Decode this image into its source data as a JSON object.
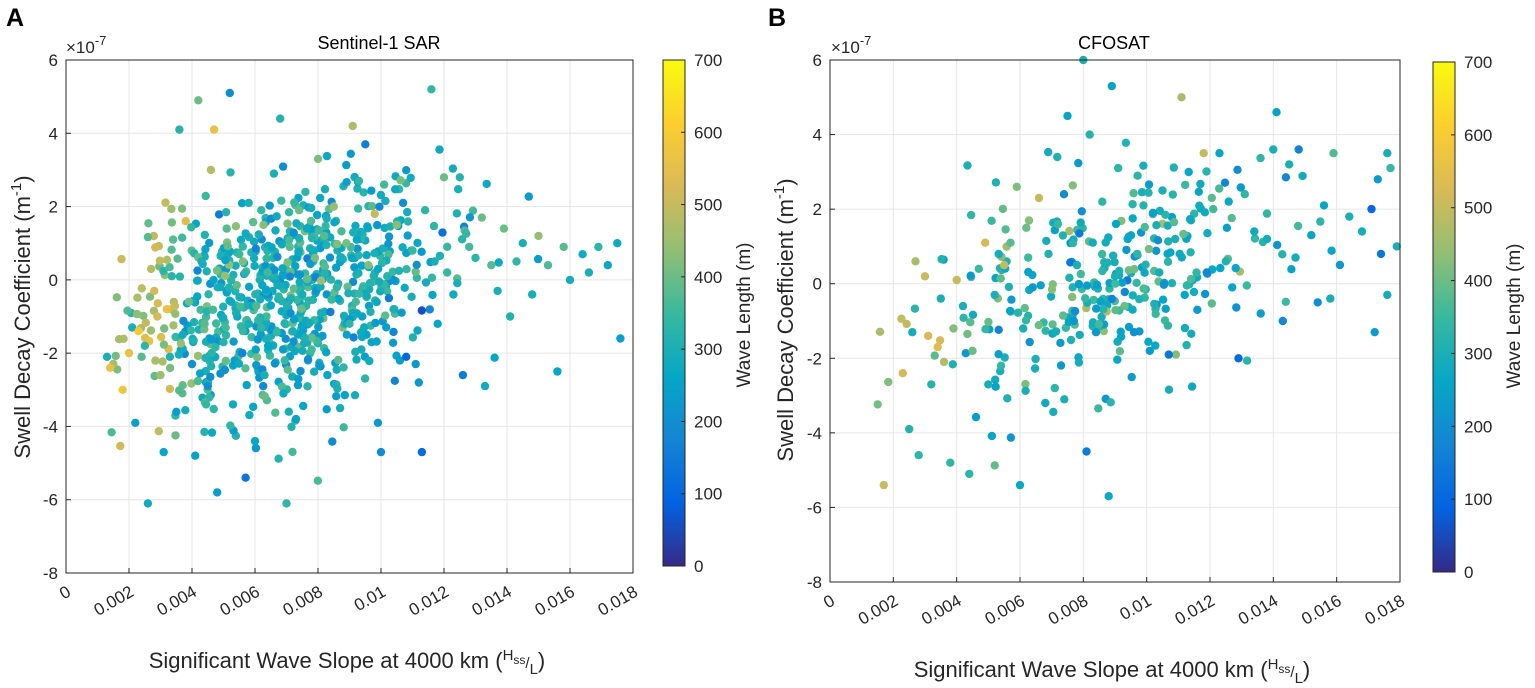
{
  "figure": {
    "panel_letters": [
      "A",
      "B"
    ]
  },
  "colormap": {
    "name": "parula",
    "stops": [
      "#352a87",
      "#0363e1",
      "#1485d4",
      "#06a7c6",
      "#38b99e",
      "#92bf73",
      "#d9ba56",
      "#fcce2e",
      "#f9fb0e"
    ]
  },
  "chart_data": [
    {
      "type": "scatter",
      "panel": "A",
      "title": "Sentinel-1 SAR",
      "xlabel_main": "Significant Wave Slope at 4000 km (",
      "xlabel_num": "H",
      "xlabel_num_sub": "ss",
      "xlabel_den": "L",
      "xlabel_close": ")",
      "ylabel_main": "Swell Decay Coefficient (m",
      "ylabel_sup": "-1",
      "ylabel_close": ")",
      "y_scale_base": "×10",
      "y_scale_exp": "-7",
      "xlim": [
        0,
        0.018
      ],
      "ylim": [
        -8,
        6
      ],
      "xticks": [
        "0",
        "0.002",
        "0.004",
        "0.006",
        "0.008",
        "0.01",
        "0.012",
        "0.014",
        "0.016",
        "0.018"
      ],
      "yticks": [
        "6",
        "4",
        "2",
        "0",
        "-2",
        "-4",
        "-6",
        "-8"
      ],
      "colorbar": {
        "label": "Wave Length (m)",
        "range": [
          0,
          700
        ],
        "ticks": [
          "700",
          "600",
          "500",
          "400",
          "300",
          "200",
          "100",
          "0"
        ]
      },
      "point_count_approx": 900,
      "points_note": "x = wave slope, y = decay coefficient (×1e-7 m^-1), c = wave length (m)",
      "points": [
        [
          0.0013,
          -2.1,
          300
        ],
        [
          0.0014,
          -2.4,
          560
        ],
        [
          0.0018,
          -3.0,
          580
        ],
        [
          0.002,
          -2.0,
          560
        ],
        [
          0.0021,
          -1.3,
          300
        ],
        [
          0.0022,
          -3.9,
          240
        ],
        [
          0.0023,
          -1.4,
          600
        ],
        [
          0.0024,
          -2.1,
          380
        ],
        [
          0.0025,
          -1.8,
          330
        ],
        [
          0.0026,
          -6.1,
          280
        ],
        [
          0.0027,
          0.3,
          480
        ],
        [
          0.0028,
          -0.3,
          520
        ],
        [
          0.0029,
          -1.0,
          520
        ],
        [
          0.003,
          -2.6,
          450
        ],
        [
          0.0031,
          -4.7,
          260
        ],
        [
          0.0032,
          -0.8,
          560
        ],
        [
          0.0033,
          -2.1,
          310
        ],
        [
          0.0034,
          1.1,
          380
        ],
        [
          0.0035,
          -3.6,
          240
        ],
        [
          0.0036,
          4.1,
          320
        ],
        [
          0.0037,
          -1.5,
          280
        ],
        [
          0.0038,
          1.6,
          540
        ],
        [
          0.0039,
          -0.6,
          400
        ],
        [
          0.004,
          -2.3,
          210
        ],
        [
          0.0041,
          -4.8,
          250
        ],
        [
          0.0042,
          4.9,
          400
        ],
        [
          0.0043,
          0.5,
          300
        ],
        [
          0.0044,
          -1.2,
          380
        ],
        [
          0.0045,
          -2.9,
          200
        ],
        [
          0.0046,
          3.0,
          480
        ],
        [
          0.0047,
          4.1,
          560
        ],
        [
          0.0048,
          -5.8,
          240
        ],
        [
          0.0049,
          -0.2,
          290
        ],
        [
          0.005,
          -1.7,
          320
        ],
        [
          0.0051,
          1.4,
          380
        ],
        [
          0.0052,
          5.1,
          200
        ],
        [
          0.0053,
          -3.4,
          280
        ],
        [
          0.0054,
          -0.9,
          300
        ],
        [
          0.0055,
          0.7,
          350
        ],
        [
          0.0056,
          -2.0,
          170
        ],
        [
          0.0057,
          -5.4,
          140
        ],
        [
          0.0058,
          2.1,
          300
        ],
        [
          0.006,
          -4.4,
          260
        ],
        [
          0.0061,
          -1.1,
          330
        ],
        [
          0.0062,
          1.9,
          340
        ],
        [
          0.0063,
          -2.6,
          300
        ],
        [
          0.0064,
          0.2,
          360
        ],
        [
          0.0065,
          -0.7,
          260
        ],
        [
          0.0066,
          2.9,
          300
        ],
        [
          0.0068,
          4.4,
          320
        ],
        [
          0.0069,
          -3.1,
          280
        ],
        [
          0.007,
          -6.1,
          330
        ],
        [
          0.0071,
          0.9,
          380
        ],
        [
          0.0072,
          -1.4,
          300
        ],
        [
          0.0073,
          -3.8,
          250
        ],
        [
          0.0074,
          1.9,
          400
        ],
        [
          0.0075,
          -0.4,
          290
        ],
        [
          0.0076,
          2.4,
          330
        ],
        [
          0.0078,
          -1.9,
          360
        ],
        [
          0.0079,
          0.6,
          410
        ],
        [
          0.008,
          3.3,
          420
        ],
        [
          0.0081,
          -0.9,
          300
        ],
        [
          0.0082,
          1.2,
          380
        ],
        [
          0.0083,
          -2.6,
          260
        ],
        [
          0.0085,
          2.0,
          440
        ],
        [
          0.0086,
          -0.2,
          330
        ],
        [
          0.0087,
          -3.5,
          290
        ],
        [
          0.0089,
          1.0,
          410
        ],
        [
          0.009,
          -1.2,
          330
        ],
        [
          0.0091,
          4.2,
          470
        ],
        [
          0.0092,
          -0.6,
          360
        ],
        [
          0.0093,
          2.7,
          330
        ],
        [
          0.0095,
          3.7,
          160
        ],
        [
          0.0096,
          0.4,
          420
        ],
        [
          0.0097,
          -1.7,
          260
        ],
        [
          0.0098,
          1.8,
          500
        ],
        [
          0.0099,
          -3.9,
          230
        ],
        [
          0.01,
          -4.7,
          200
        ],
        [
          0.0101,
          2.6,
          360
        ],
        [
          0.0102,
          0.1,
          320
        ],
        [
          0.0104,
          -0.8,
          300
        ],
        [
          0.0105,
          1.5,
          430
        ],
        [
          0.0106,
          -2.2,
          240
        ],
        [
          0.0107,
          2.1,
          200
        ],
        [
          0.0108,
          -2.1,
          100
        ],
        [
          0.011,
          0.8,
          350
        ],
        [
          0.0111,
          -2.3,
          230
        ],
        [
          0.0112,
          -2.8,
          220
        ],
        [
          0.0113,
          -4.7,
          110
        ],
        [
          0.0114,
          1.9,
          330
        ],
        [
          0.0116,
          5.2,
          340
        ],
        [
          0.0117,
          0.5,
          300
        ],
        [
          0.0118,
          -1.2,
          260
        ],
        [
          0.012,
          2.8,
          400
        ],
        [
          0.0121,
          0.2,
          350
        ],
        [
          0.0123,
          -0.4,
          280
        ],
        [
          0.0125,
          2.8,
          320
        ],
        [
          0.0126,
          -2.6,
          150
        ],
        [
          0.0128,
          0.9,
          360
        ],
        [
          0.013,
          0.6,
          330
        ],
        [
          0.0132,
          1.7,
          400
        ],
        [
          0.0133,
          -2.9,
          280
        ],
        [
          0.0135,
          0.4,
          380
        ],
        [
          0.0137,
          -0.3,
          300
        ],
        [
          0.0139,
          1.4,
          400
        ],
        [
          0.0141,
          -1.0,
          310
        ],
        [
          0.0143,
          0.5,
          340
        ],
        [
          0.0145,
          1.0,
          300
        ],
        [
          0.0148,
          -0.4,
          290
        ],
        [
          0.015,
          1.2,
          440
        ],
        [
          0.0153,
          0.4,
          370
        ],
        [
          0.0156,
          -2.5,
          260
        ],
        [
          0.0158,
          0.9,
          380
        ],
        [
          0.016,
          0.0,
          290
        ],
        [
          0.0164,
          0.7,
          280
        ],
        [
          0.0166,
          0.2,
          300
        ],
        [
          0.0169,
          0.9,
          330
        ],
        [
          0.0172,
          0.4,
          270
        ],
        [
          0.0176,
          -1.6,
          240
        ],
        [
          0.0175,
          1.0,
          280
        ]
      ]
    },
    {
      "type": "scatter",
      "panel": "B",
      "title": "CFOSAT",
      "xlabel_main": "Significant Wave Slope at 4000 km (",
      "xlabel_num": "H",
      "xlabel_num_sub": "ss",
      "xlabel_den": "L",
      "xlabel_close": ")",
      "ylabel_main": "Swell Decay Coefficient (m",
      "ylabel_sup": "-1",
      "ylabel_close": ")",
      "y_scale_base": "×10",
      "y_scale_exp": "-7",
      "xlim": [
        0,
        0.018
      ],
      "ylim": [
        -8,
        6
      ],
      "xticks": [
        "0",
        "0.002",
        "0.004",
        "0.006",
        "0.008",
        "0.01",
        "0.012",
        "0.014",
        "0.016",
        "0.018"
      ],
      "yticks": [
        "6",
        "4",
        "2",
        "0",
        "-2",
        "-4",
        "-6",
        "-8"
      ],
      "colorbar": {
        "label": "Wave Length (m)",
        "range": [
          0,
          700
        ],
        "ticks": [
          "700",
          "600",
          "500",
          "400",
          "300",
          "200",
          "100",
          "0"
        ]
      },
      "point_count_approx": 450,
      "points_note": "x = wave slope, y = decay coefficient (×1e-7 m^-1), c = wave length (m)",
      "points": [
        [
          0.0017,
          -5.4,
          500
        ],
        [
          0.0023,
          -2.4,
          520
        ],
        [
          0.0025,
          -3.9,
          320
        ],
        [
          0.0026,
          -1.3,
          280
        ],
        [
          0.0027,
          0.6,
          460
        ],
        [
          0.0028,
          -4.6,
          330
        ],
        [
          0.003,
          0.2,
          500
        ],
        [
          0.0031,
          -1.4,
          520
        ],
        [
          0.0032,
          -2.7,
          320
        ],
        [
          0.0034,
          -1.7,
          540
        ],
        [
          0.0035,
          -0.4,
          300
        ],
        [
          0.0036,
          -2.1,
          480
        ],
        [
          0.0038,
          -4.8,
          330
        ],
        [
          0.0039,
          -1.2,
          420
        ],
        [
          0.004,
          0.1,
          500
        ],
        [
          0.0042,
          -0.6,
          300
        ],
        [
          0.0044,
          -5.1,
          330
        ],
        [
          0.0045,
          -1.8,
          400
        ],
        [
          0.0047,
          0.4,
          350
        ],
        [
          0.0049,
          1.1,
          520
        ],
        [
          0.005,
          -2.7,
          300
        ],
        [
          0.0052,
          -0.3,
          300
        ],
        [
          0.0054,
          -2.2,
          340
        ],
        [
          0.0055,
          0.5,
          500
        ],
        [
          0.0057,
          1.1,
          380
        ],
        [
          0.0059,
          2.6,
          420
        ],
        [
          0.006,
          -5.4,
          270
        ],
        [
          0.0061,
          -1.2,
          300
        ],
        [
          0.0062,
          1.5,
          400
        ],
        [
          0.0064,
          -0.1,
          230
        ],
        [
          0.0066,
          2.3,
          500
        ],
        [
          0.0068,
          -3.2,
          280
        ],
        [
          0.0069,
          0.8,
          310
        ],
        [
          0.0071,
          -2.8,
          330
        ],
        [
          0.0072,
          1.6,
          350
        ],
        [
          0.0074,
          -3.1,
          300
        ],
        [
          0.0075,
          4.5,
          260
        ],
        [
          0.0077,
          -1.0,
          220
        ],
        [
          0.0078,
          0.5,
          300
        ],
        [
          0.008,
          6.0,
          300
        ],
        [
          0.0081,
          -4.5,
          150
        ],
        [
          0.0082,
          4.0,
          320
        ],
        [
          0.0083,
          1.1,
          280
        ],
        [
          0.0084,
          -1.3,
          230
        ],
        [
          0.0086,
          2.2,
          330
        ],
        [
          0.0088,
          -5.7,
          270
        ],
        [
          0.0089,
          5.3,
          250
        ],
        [
          0.009,
          0.2,
          300
        ],
        [
          0.0091,
          3.1,
          330
        ],
        [
          0.0093,
          -0.6,
          400
        ],
        [
          0.0094,
          1.2,
          260
        ],
        [
          0.0096,
          -1.3,
          200
        ],
        [
          0.0097,
          0.8,
          330
        ],
        [
          0.0099,
          2.1,
          320
        ],
        [
          0.0101,
          -1.8,
          230
        ],
        [
          0.0102,
          1.9,
          250
        ],
        [
          0.0104,
          0.3,
          290
        ],
        [
          0.0105,
          2.5,
          300
        ],
        [
          0.0107,
          -1.9,
          140
        ],
        [
          0.0109,
          1.2,
          300
        ],
        [
          0.0111,
          5.0,
          460
        ],
        [
          0.0112,
          -0.3,
          260
        ],
        [
          0.0114,
          1.7,
          280
        ],
        [
          0.0116,
          -0.7,
          230
        ],
        [
          0.0118,
          3.5,
          500
        ],
        [
          0.0119,
          0.3,
          180
        ],
        [
          0.0121,
          2.0,
          360
        ],
        [
          0.0123,
          3.5,
          260
        ],
        [
          0.0125,
          0.6,
          310
        ],
        [
          0.0127,
          -0.1,
          260
        ],
        [
          0.0129,
          -2.0,
          100
        ],
        [
          0.0131,
          2.4,
          330
        ],
        [
          0.0134,
          1.4,
          280
        ],
        [
          0.0136,
          -0.8,
          240
        ],
        [
          0.0138,
          1.2,
          290
        ],
        [
          0.014,
          3.6,
          300
        ],
        [
          0.0141,
          4.6,
          250
        ],
        [
          0.0143,
          -1.0,
          180
        ],
        [
          0.0145,
          3.2,
          300
        ],
        [
          0.0147,
          0.7,
          290
        ],
        [
          0.0148,
          3.6,
          170
        ],
        [
          0.0152,
          1.3,
          260
        ],
        [
          0.0154,
          -0.5,
          200
        ],
        [
          0.0156,
          2.1,
          260
        ],
        [
          0.0158,
          -0.4,
          300
        ],
        [
          0.0159,
          3.5,
          370
        ],
        [
          0.0164,
          1.8,
          300
        ],
        [
          0.0168,
          1.4,
          290
        ],
        [
          0.0171,
          2.0,
          100
        ],
        [
          0.0172,
          -1.3,
          230
        ],
        [
          0.0173,
          2.8,
          230
        ],
        [
          0.0174,
          0.8,
          140
        ],
        [
          0.0176,
          3.5,
          290
        ],
        [
          0.0176,
          -0.3,
          290
        ],
        [
          0.0177,
          3.1,
          350
        ],
        [
          0.0179,
          1.0,
          300
        ]
      ]
    }
  ]
}
